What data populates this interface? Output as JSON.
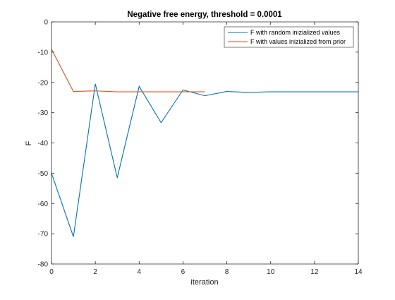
{
  "chart_data": {
    "type": "line",
    "title": "Negative free energy, threshold = 0.0001",
    "xlabel": "iteration",
    "ylabel": "F",
    "xlim": [
      0,
      14
    ],
    "ylim": [
      -80,
      0
    ],
    "xticks": [
      0,
      2,
      4,
      6,
      8,
      10,
      12,
      14
    ],
    "yticks": [
      0,
      -10,
      -20,
      -30,
      -40,
      -50,
      -60,
      -70,
      -80
    ],
    "grid": false,
    "legend_position": "top-right",
    "series": [
      {
        "name": "F with random inizialized values",
        "color": "#0072bd",
        "x": [
          0,
          1,
          2,
          3,
          4,
          5,
          6,
          7,
          8,
          9,
          10,
          11,
          12,
          13,
          14
        ],
        "y": [
          -50,
          -71,
          -20.5,
          -51.5,
          -21.3,
          -33.3,
          -22.5,
          -24.4,
          -23,
          -23.3,
          -23.1,
          -23.1,
          -23.1,
          -23.1,
          -23.1
        ]
      },
      {
        "name": "F with values inizialized from prior",
        "color": "#d95319",
        "x": [
          0,
          1,
          2,
          3,
          4,
          5,
          6,
          7
        ],
        "y": [
          -9,
          -23,
          -22.8,
          -23.1,
          -23.1,
          -23.1,
          -23.1,
          -23.1
        ]
      }
    ]
  }
}
